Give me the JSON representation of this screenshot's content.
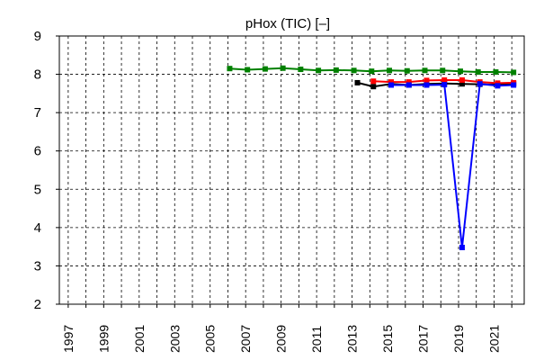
{
  "chart_data": {
    "type": "line",
    "title": "pHox (TIC) [–]",
    "xlabel": "",
    "ylabel": "",
    "xlim": [
      1996.5,
      2022.7
    ],
    "ylim": [
      2,
      9
    ],
    "yticks": [
      2,
      3,
      4,
      5,
      6,
      7,
      8,
      9
    ],
    "xticks": [
      1997,
      1998,
      1999,
      2000,
      2001,
      2002,
      2003,
      2004,
      2005,
      2006,
      2007,
      2008,
      2009,
      2010,
      2011,
      2012,
      2013,
      2014,
      2015,
      2016,
      2017,
      2018,
      2019,
      2020,
      2021,
      2022
    ],
    "xtick_labels": [
      "1997",
      "1999",
      "2001",
      "2003",
      "2005",
      "2007",
      "2009",
      "2011",
      "2013",
      "2015",
      "2017",
      "2019",
      "2021"
    ],
    "grid": true,
    "legend": "none",
    "series": [
      {
        "color": "#000000",
        "x": [
          2013.3,
          2014.2,
          2015.2,
          2016.2,
          2017.2,
          2018.2,
          2019.2,
          2020.2,
          2021.2,
          2022.1
        ],
        "y": [
          7.78,
          7.68,
          7.75,
          7.72,
          7.75,
          7.76,
          7.75,
          7.74,
          7.73,
          7.75
        ]
      },
      {
        "color": "#ff0000",
        "x": [
          2014.2,
          2015.2,
          2016.2,
          2017.2,
          2018.2,
          2019.2,
          2020.2,
          2021.2,
          2022.1
        ],
        "y": [
          7.82,
          7.8,
          7.8,
          7.84,
          7.85,
          7.85,
          7.8,
          7.77,
          7.78
        ]
      },
      {
        "color": "#0000ff",
        "x": [
          2015.2,
          2016.2,
          2017.2,
          2018.2,
          2019.2,
          2020.2,
          2021.2,
          2022.1
        ],
        "y": [
          7.72,
          7.72,
          7.72,
          7.73,
          3.48,
          7.75,
          7.7,
          7.72
        ]
      },
      {
        "color": "#008000",
        "x": [
          2006.1,
          2007.1,
          2008.1,
          2009.1,
          2010.1,
          2011.1,
          2012.1,
          2013.1,
          2014.1,
          2015.1,
          2016.1,
          2017.1,
          2018.1,
          2019.1,
          2020.1,
          2021.1,
          2022.1
        ],
        "y": [
          8.15,
          8.12,
          8.14,
          8.16,
          8.13,
          8.1,
          8.11,
          8.1,
          8.08,
          8.1,
          8.09,
          8.1,
          8.1,
          8.08,
          8.06,
          8.06,
          8.05
        ]
      }
    ]
  }
}
